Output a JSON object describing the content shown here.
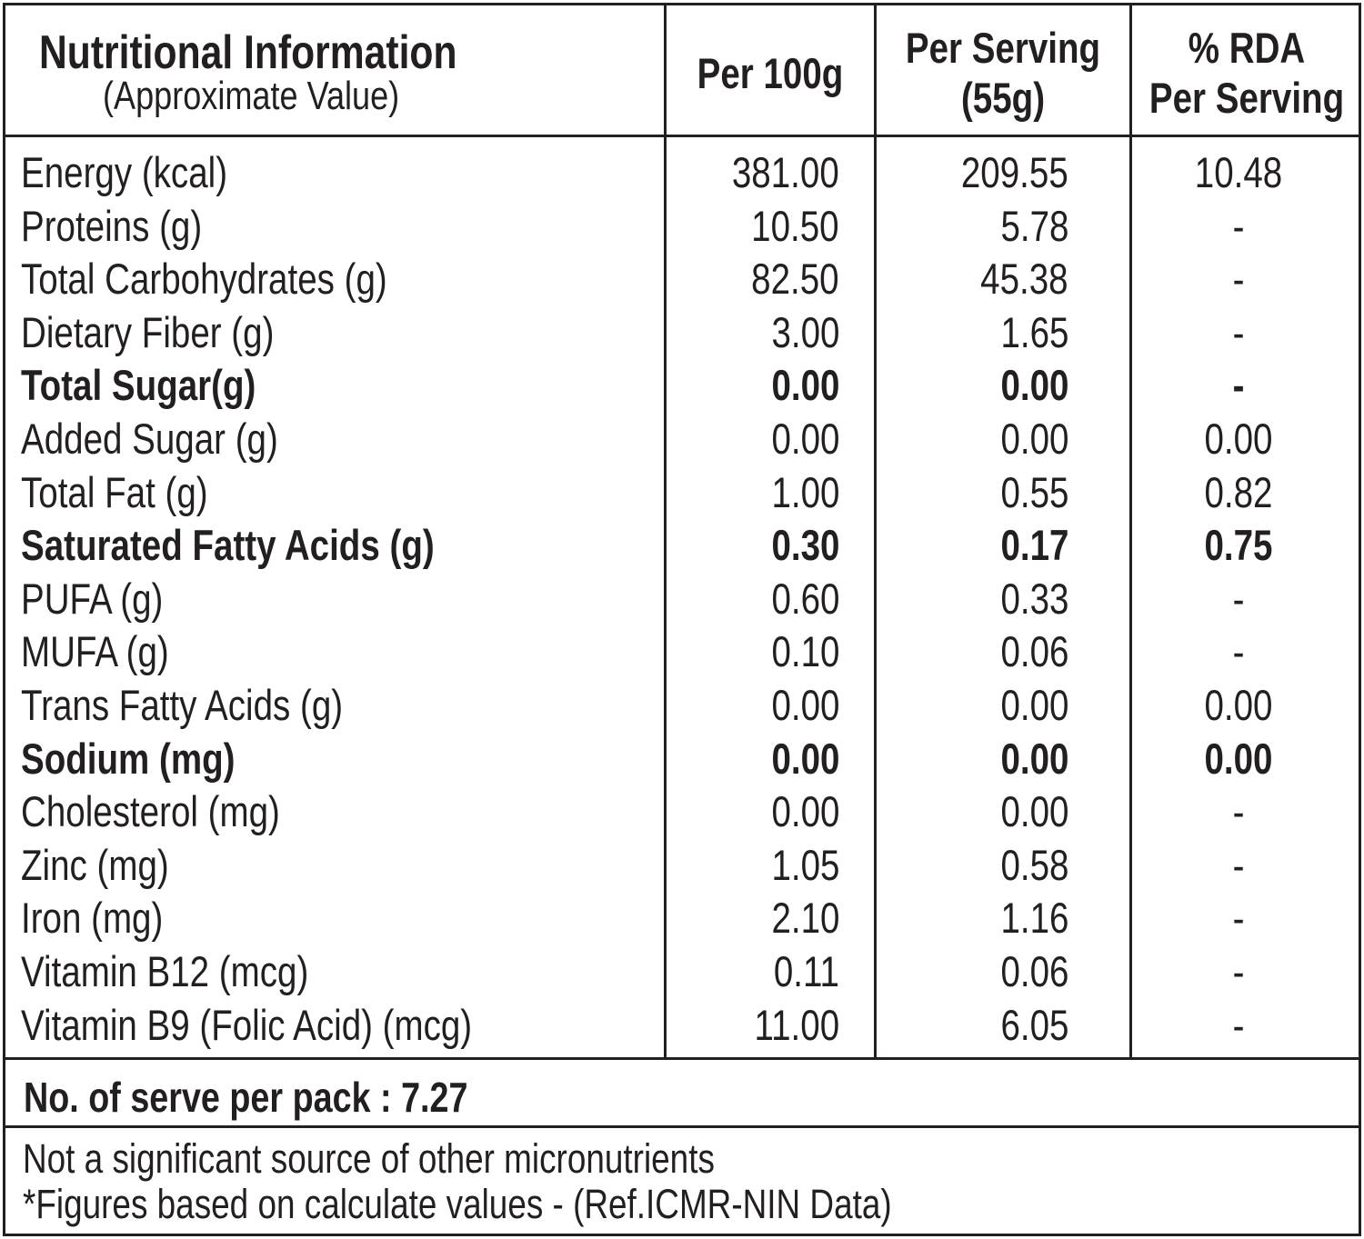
{
  "header": {
    "title": "Nutritional Information",
    "subtitle": "(Approximate Value)",
    "col_per100g": "Per 100g",
    "col_per_serving_line1": "Per Serving",
    "col_per_serving_line2": "(55g)",
    "col_rda_line1": "% RDA",
    "col_rda_line2": "Per Serving"
  },
  "rows": [
    {
      "name": "Energy (kcal)",
      "per100g": "381.00",
      "per_serving": "209.55",
      "rda": "10.48",
      "bold": false
    },
    {
      "name": "Proteins (g)",
      "per100g": "10.50",
      "per_serving": "5.78",
      "rda": "-",
      "bold": false
    },
    {
      "name": "Total Carbohydrates (g)",
      "per100g": "82.50",
      "per_serving": "45.38",
      "rda": "-",
      "bold": false
    },
    {
      "name": "Dietary Fiber (g)",
      "per100g": "3.00",
      "per_serving": "1.65",
      "rda": "-",
      "bold": false
    },
    {
      "name": "Total Sugar(g)",
      "per100g": "0.00",
      "per_serving": "0.00",
      "rda": "-",
      "bold": true
    },
    {
      "name": "Added Sugar (g)",
      "per100g": "0.00",
      "per_serving": "0.00",
      "rda": "0.00",
      "bold": false
    },
    {
      "name": "Total Fat (g)",
      "per100g": "1.00",
      "per_serving": "0.55",
      "rda": "0.82",
      "bold": false
    },
    {
      "name": "Saturated Fatty Acids (g)",
      "per100g": "0.30",
      "per_serving": "0.17",
      "rda": "0.75",
      "bold": true
    },
    {
      "name": "PUFA (g)",
      "per100g": "0.60",
      "per_serving": "0.33",
      "rda": "-",
      "bold": false
    },
    {
      "name": "MUFA (g)",
      "per100g": "0.10",
      "per_serving": "0.06",
      "rda": "-",
      "bold": false
    },
    {
      "name": "Trans Fatty Acids (g)",
      "per100g": "0.00",
      "per_serving": "0.00",
      "rda": "0.00",
      "bold": false
    },
    {
      "name": "Sodium (mg)",
      "per100g": "0.00",
      "per_serving": "0.00",
      "rda": "0.00",
      "bold": true
    },
    {
      "name": "Cholesterol (mg)",
      "per100g": "0.00",
      "per_serving": "0.00",
      "rda": "-",
      "bold": false
    },
    {
      "name": "Zinc (mg)",
      "per100g": "1.05",
      "per_serving": "0.58",
      "rda": "-",
      "bold": false
    },
    {
      "name": "Iron (mg)",
      "per100g": "2.10",
      "per_serving": "1.16",
      "rda": "-",
      "bold": false
    },
    {
      "name": "Vitamin B12 (mcg)",
      "per100g": "0.11",
      "per_serving": "0.06",
      "rda": "-",
      "bold": false
    },
    {
      "name": "Vitamin B9 (Folic Acid) (mcg)",
      "per100g": "11.00",
      "per_serving": "6.05",
      "rda": "-",
      "bold": false
    }
  ],
  "serve_per_pack": "No. of serve per pack : 7.27",
  "footnote_line1": "Not a significant source of other micronutrients",
  "footnote_line2": "*Figures based on calculate values - (Ref.ICMR-NIN Data)"
}
